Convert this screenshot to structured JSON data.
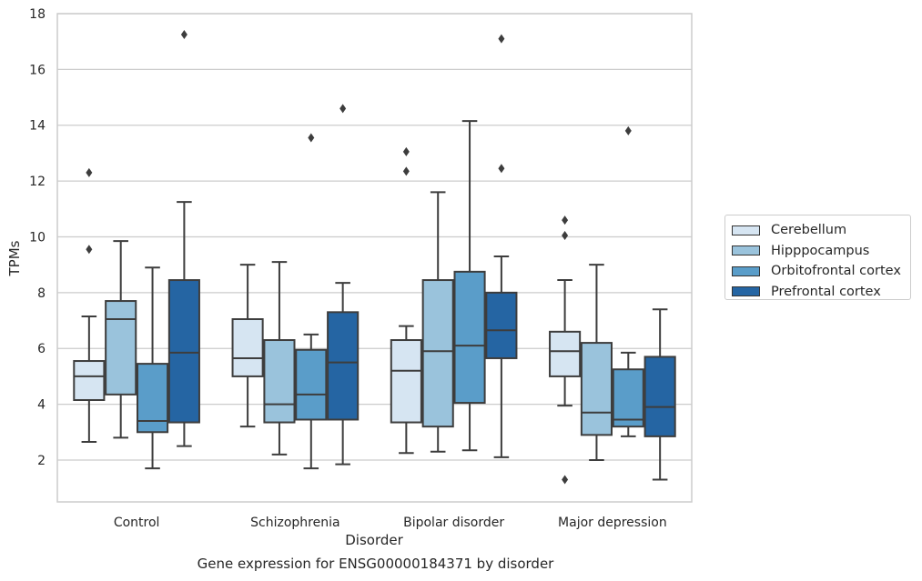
{
  "caption": "Gene expression for ENSG00000184371 by disorder",
  "chart_data": {
    "type": "box",
    "xlabel": "Disorder",
    "ylabel": "TPMs",
    "ylim": [
      0.5,
      18
    ],
    "yticks": [
      2,
      4,
      6,
      8,
      10,
      12,
      14,
      16,
      18
    ],
    "grid": "horizontal",
    "legend_position": "right",
    "categories": [
      "Control",
      "Schizophrenia",
      "Bipolar disorder",
      "Major depression"
    ],
    "series": [
      {
        "name": "Cerebellum",
        "color": "#d6e5f2",
        "boxes": [
          {
            "whislo": 2.65,
            "q1": 4.15,
            "med": 5.0,
            "q3": 5.55,
            "whishi": 7.15,
            "fliers": [
              9.55,
              12.3
            ]
          },
          {
            "whislo": 3.2,
            "q1": 5.0,
            "med": 5.65,
            "q3": 7.05,
            "whishi": 9.0,
            "fliers": []
          },
          {
            "whislo": 2.25,
            "q1": 3.35,
            "med": 5.2,
            "q3": 6.3,
            "whishi": 6.8,
            "fliers": [
              12.35,
              13.05
            ]
          },
          {
            "whislo": 3.95,
            "q1": 5.0,
            "med": 5.9,
            "q3": 6.6,
            "whishi": 8.45,
            "fliers": [
              1.3,
              10.05,
              10.6
            ]
          }
        ]
      },
      {
        "name": "Hipppocampus",
        "color": "#9ac3dc",
        "boxes": [
          {
            "whislo": 2.8,
            "q1": 4.35,
            "med": 7.05,
            "q3": 7.7,
            "whishi": 9.85,
            "fliers": []
          },
          {
            "whislo": 2.2,
            "q1": 3.35,
            "med": 4.0,
            "q3": 6.3,
            "whishi": 9.1,
            "fliers": []
          },
          {
            "whislo": 2.3,
            "q1": 3.2,
            "med": 5.9,
            "q3": 8.45,
            "whishi": 11.6,
            "fliers": []
          },
          {
            "whislo": 2.0,
            "q1": 2.9,
            "med": 3.7,
            "q3": 6.2,
            "whishi": 9.0,
            "fliers": []
          }
        ]
      },
      {
        "name": "Orbitofrontal cortex",
        "color": "#5a9dc9",
        "boxes": [
          {
            "whislo": 1.7,
            "q1": 3.0,
            "med": 3.4,
            "q3": 5.45,
            "whishi": 8.9,
            "fliers": []
          },
          {
            "whislo": 1.7,
            "q1": 3.45,
            "med": 4.35,
            "q3": 5.95,
            "whishi": 6.5,
            "fliers": [
              13.55
            ]
          },
          {
            "whislo": 2.35,
            "q1": 4.05,
            "med": 6.1,
            "q3": 8.75,
            "whishi": 14.15,
            "fliers": []
          },
          {
            "whislo": 2.85,
            "q1": 3.2,
            "med": 3.45,
            "q3": 5.25,
            "whishi": 5.85,
            "fliers": [
              13.8
            ]
          }
        ]
      },
      {
        "name": "Prefrontal cortex",
        "color": "#2565a3",
        "boxes": [
          {
            "whislo": 2.5,
            "q1": 3.35,
            "med": 5.85,
            "q3": 8.45,
            "whishi": 11.25,
            "fliers": [
              17.25
            ]
          },
          {
            "whislo": 1.85,
            "q1": 3.45,
            "med": 5.5,
            "q3": 7.3,
            "whishi": 8.35,
            "fliers": [
              14.6
            ]
          },
          {
            "whislo": 2.1,
            "q1": 5.65,
            "med": 6.65,
            "q3": 8.0,
            "whishi": 9.3,
            "fliers": [
              12.45,
              17.1
            ]
          },
          {
            "whislo": 1.3,
            "q1": 2.85,
            "med": 3.9,
            "q3": 5.7,
            "whishi": 7.4,
            "fliers": []
          }
        ]
      }
    ]
  }
}
